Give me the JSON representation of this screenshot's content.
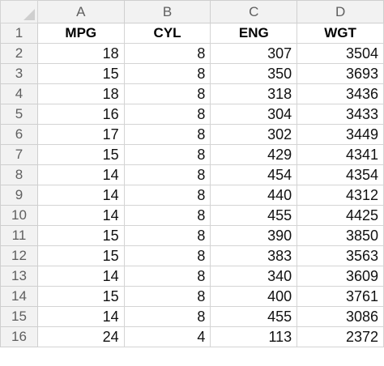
{
  "columns": [
    "A",
    "B",
    "C",
    "D"
  ],
  "header_row": {
    "row_number": "1",
    "cells": [
      "MPG",
      "CYL",
      "ENG",
      "WGT"
    ]
  },
  "rows": [
    {
      "row_number": "2",
      "cells": [
        "18",
        "8",
        "307",
        "3504"
      ]
    },
    {
      "row_number": "3",
      "cells": [
        "15",
        "8",
        "350",
        "3693"
      ]
    },
    {
      "row_number": "4",
      "cells": [
        "18",
        "8",
        "318",
        "3436"
      ]
    },
    {
      "row_number": "5",
      "cells": [
        "16",
        "8",
        "304",
        "3433"
      ]
    },
    {
      "row_number": "6",
      "cells": [
        "17",
        "8",
        "302",
        "3449"
      ]
    },
    {
      "row_number": "7",
      "cells": [
        "15",
        "8",
        "429",
        "4341"
      ]
    },
    {
      "row_number": "8",
      "cells": [
        "14",
        "8",
        "454",
        "4354"
      ]
    },
    {
      "row_number": "9",
      "cells": [
        "14",
        "8",
        "440",
        "4312"
      ]
    },
    {
      "row_number": "10",
      "cells": [
        "14",
        "8",
        "455",
        "4425"
      ]
    },
    {
      "row_number": "11",
      "cells": [
        "15",
        "8",
        "390",
        "3850"
      ]
    },
    {
      "row_number": "12",
      "cells": [
        "15",
        "8",
        "383",
        "3563"
      ]
    },
    {
      "row_number": "13",
      "cells": [
        "14",
        "8",
        "340",
        "3609"
      ]
    },
    {
      "row_number": "14",
      "cells": [
        "15",
        "8",
        "400",
        "3761"
      ]
    },
    {
      "row_number": "15",
      "cells": [
        "14",
        "8",
        "455",
        "3086"
      ]
    },
    {
      "row_number": "16",
      "cells": [
        "24",
        "4",
        "113",
        "2372"
      ]
    }
  ]
}
